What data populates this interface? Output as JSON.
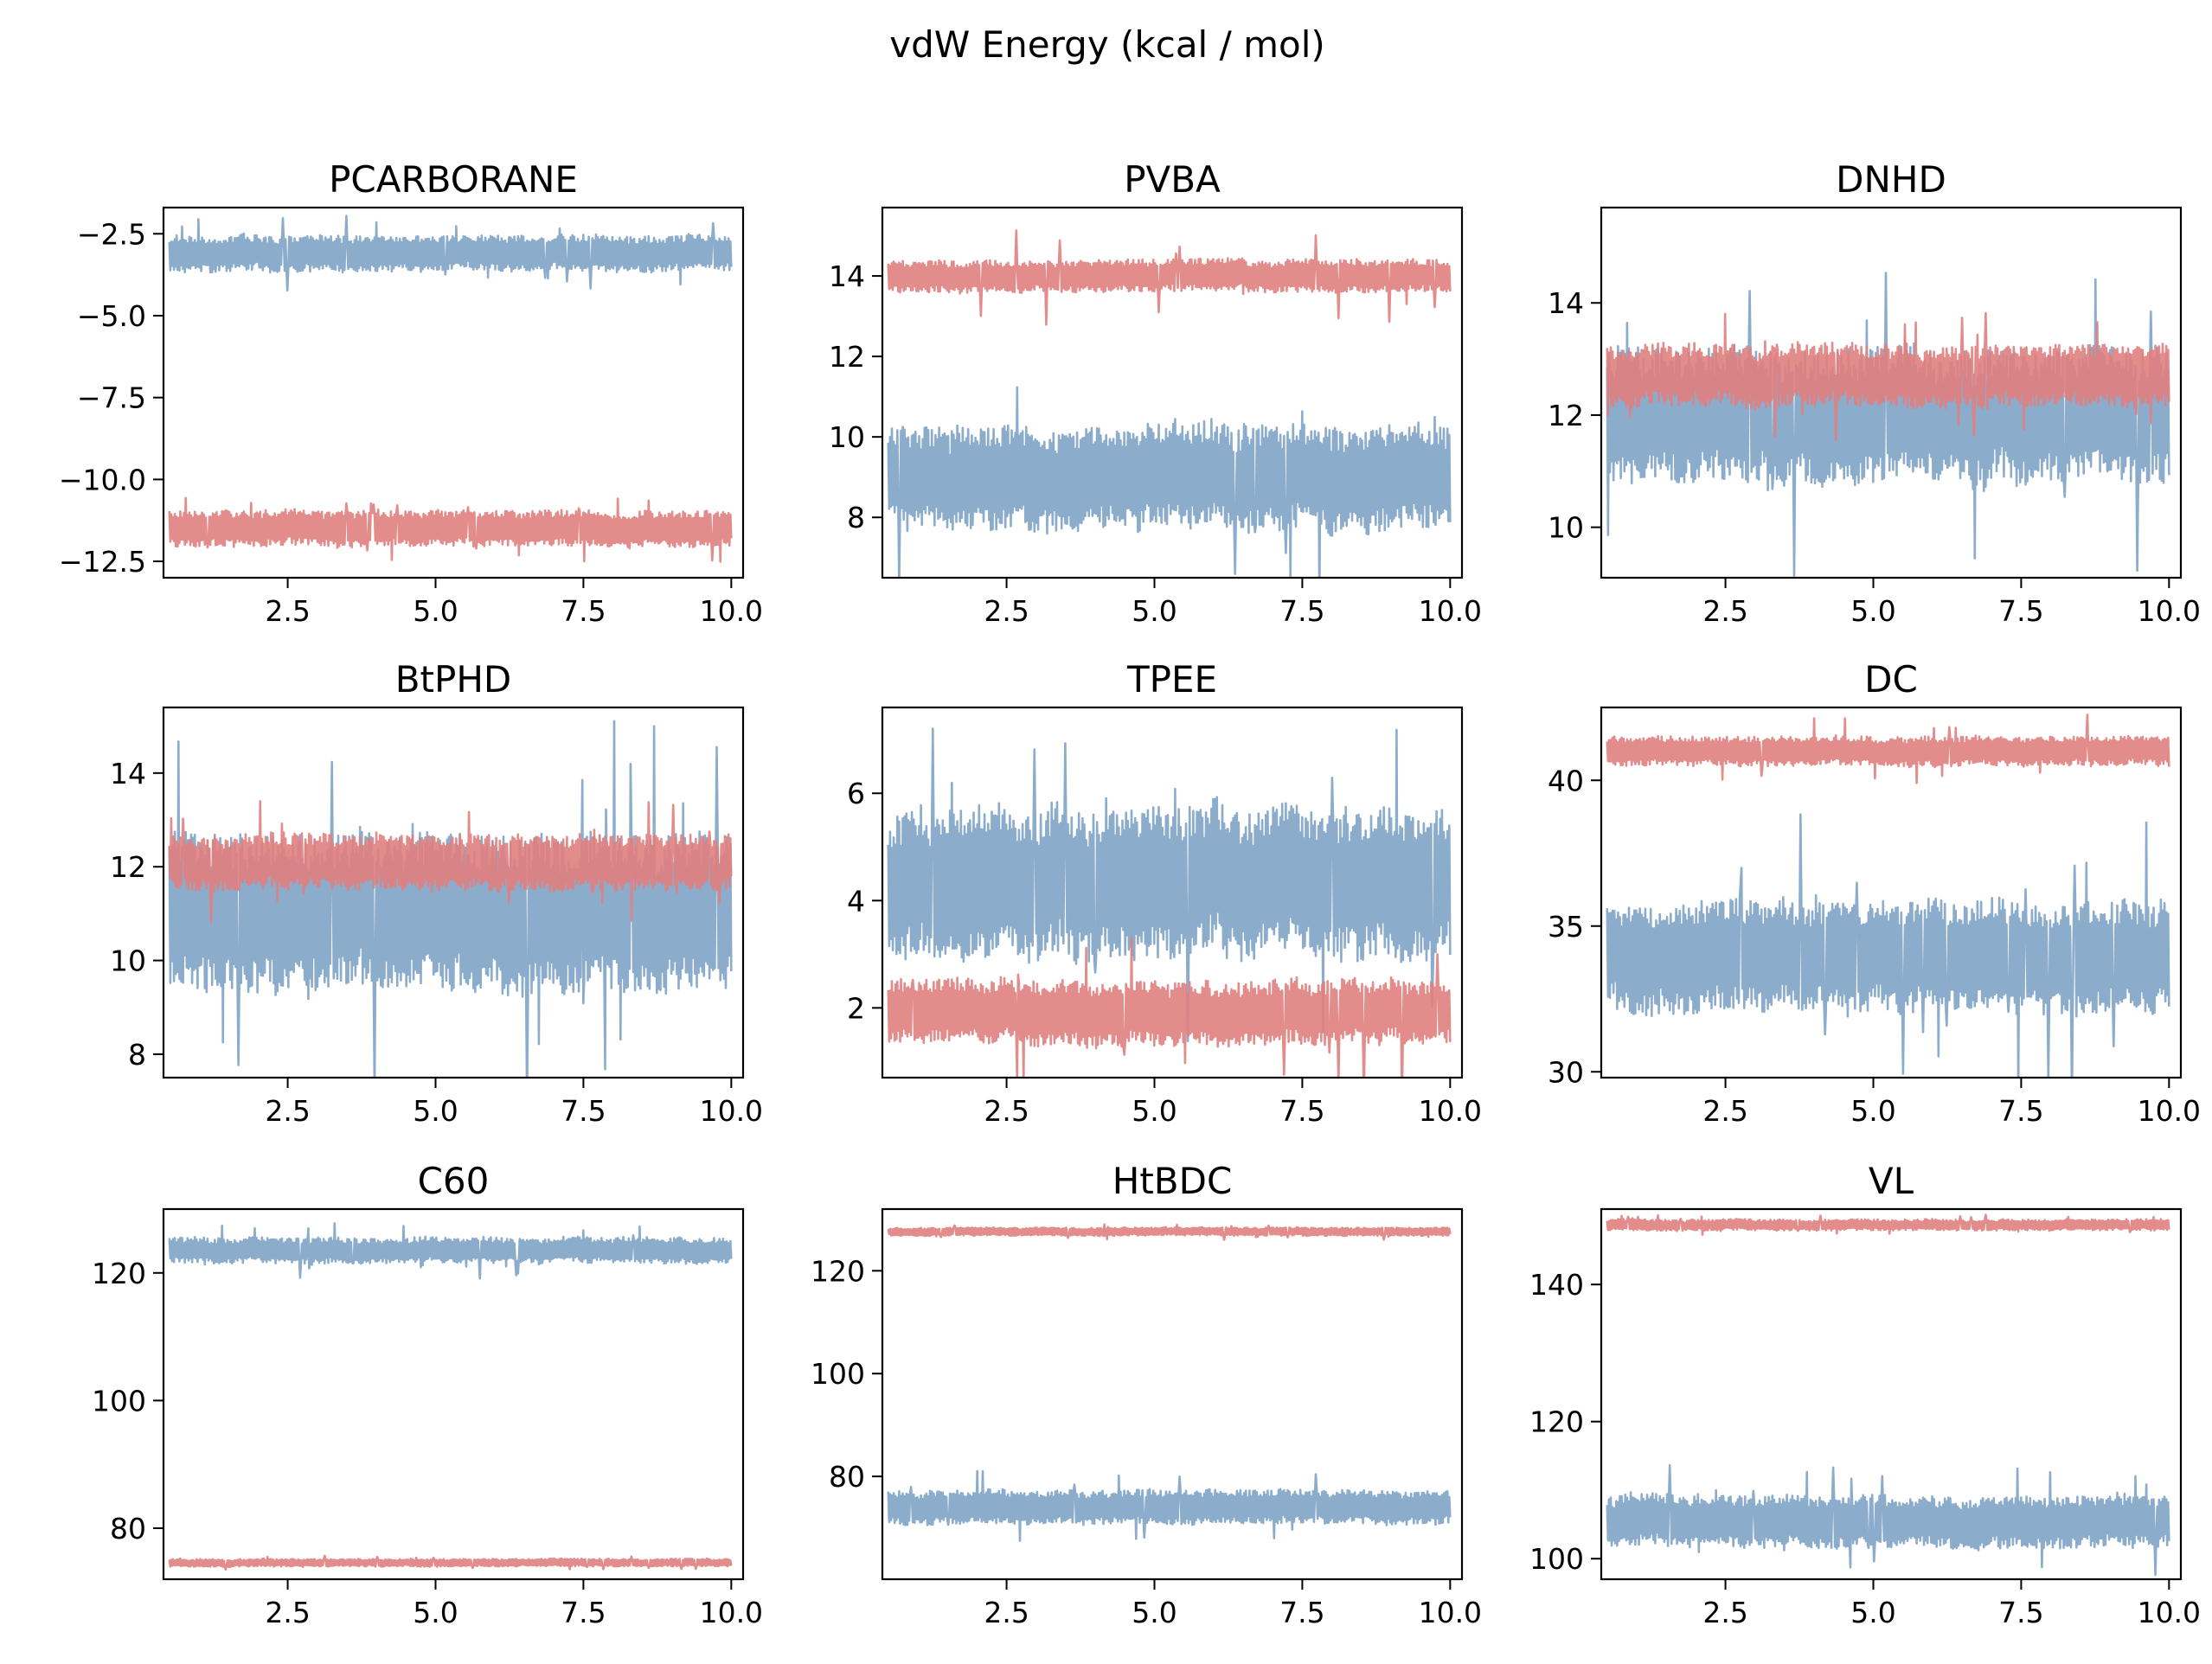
{
  "figure": {
    "title": "vdW Energy (kcal / mol)"
  },
  "colors": {
    "series_a": "#e07f80",
    "series_b": "#7fa3c6",
    "overlap": "#b46a72"
  },
  "chart_data": [
    {
      "type": "line",
      "title": "PCARBORANE",
      "xlim": [
        0.4,
        10.2
      ],
      "ylim": [
        -13.0,
        -1.7
      ],
      "xticks": [
        2.5,
        5.0,
        7.5,
        10.0
      ],
      "xtick_labels": [
        "2.5",
        "5.0",
        "7.5",
        "10.0"
      ],
      "yticks": [
        -12.5,
        -10.0,
        -7.5,
        -5.0,
        -2.5
      ],
      "ytick_labels": [
        "−12.5",
        "−10.0",
        "−7.5",
        "−5.0",
        "−2.5"
      ],
      "series": [
        {
          "color": "#e07f80",
          "x_range": [
            0.5,
            10.0
          ],
          "mean": -11.5,
          "band": 0.55,
          "spike": 0.5
        },
        {
          "color": "#7fa3c6",
          "x_range": [
            0.5,
            10.0
          ],
          "mean": -3.1,
          "band": 0.55,
          "spike": 0.6
        }
      ]
    },
    {
      "type": "line",
      "title": "PVBA",
      "xlim": [
        0.4,
        10.2
      ],
      "ylim": [
        6.5,
        15.7
      ],
      "xticks": [
        2.5,
        5.0,
        7.5,
        10.0
      ],
      "xtick_labels": [
        "2.5",
        "5.0",
        "7.5",
        "10.0"
      ],
      "yticks": [
        8,
        10,
        12,
        14
      ],
      "ytick_labels": [
        "8",
        "10",
        "12",
        "14"
      ],
      "series": [
        {
          "color": "#7fa3c6",
          "x_range": [
            0.5,
            10.0
          ],
          "mean": 9.0,
          "band": 1.3,
          "spike": 2.0
        },
        {
          "color": "#e07f80",
          "x_range": [
            0.5,
            10.0
          ],
          "mean": 14.0,
          "band": 0.4,
          "spike": 0.9
        }
      ]
    },
    {
      "type": "line",
      "title": "DNHD",
      "xlim": [
        0.4,
        10.2
      ],
      "ylim": [
        9.1,
        15.7
      ],
      "xticks": [
        2.5,
        5.0,
        7.5,
        10.0
      ],
      "xtick_labels": [
        "2.5",
        "5.0",
        "7.5",
        "10.0"
      ],
      "yticks": [
        10,
        12,
        14
      ],
      "ytick_labels": [
        "10",
        "12",
        "14"
      ],
      "series": [
        {
          "color": "#7fa3c6",
          "x_range": [
            0.5,
            10.0
          ],
          "mean": 12.0,
          "band": 1.2,
          "spike": 2.0
        },
        {
          "color": "#e07f80",
          "x_range": [
            0.5,
            10.0
          ],
          "mean": 12.7,
          "band": 0.55,
          "spike": 0.6
        }
      ]
    },
    {
      "type": "line",
      "title": "BtPHD",
      "xlim": [
        0.4,
        10.2
      ],
      "ylim": [
        7.5,
        15.4
      ],
      "xticks": [
        2.5,
        5.0,
        7.5,
        10.0
      ],
      "xtick_labels": [
        "2.5",
        "5.0",
        "7.5",
        "10.0"
      ],
      "yticks": [
        8,
        10,
        12,
        14
      ],
      "ytick_labels": [
        "8",
        "10",
        "12",
        "14"
      ],
      "series": [
        {
          "color": "#7fa3c6",
          "x_range": [
            0.5,
            10.0
          ],
          "mean": 11.0,
          "band": 1.7,
          "spike": 2.5
        },
        {
          "color": "#e07f80",
          "x_range": [
            0.5,
            10.0
          ],
          "mean": 12.1,
          "band": 0.6,
          "spike": 0.7
        }
      ]
    },
    {
      "type": "line",
      "title": "TPEE",
      "xlim": [
        0.4,
        10.2
      ],
      "ylim": [
        0.7,
        7.6
      ],
      "xticks": [
        2.5,
        5.0,
        7.5,
        10.0
      ],
      "xtick_labels": [
        "2.5",
        "5.0",
        "7.5",
        "10.0"
      ],
      "yticks": [
        2,
        4,
        6
      ],
      "ytick_labels": [
        "2",
        "4",
        "6"
      ],
      "series": [
        {
          "color": "#7fa3c6",
          "x_range": [
            0.5,
            10.0
          ],
          "mean": 4.3,
          "band": 1.4,
          "spike": 1.7
        },
        {
          "color": "#e07f80",
          "x_range": [
            0.5,
            10.0
          ],
          "mean": 1.9,
          "band": 0.6,
          "spike": 1.0
        }
      ]
    },
    {
      "type": "line",
      "title": "DC",
      "xlim": [
        0.4,
        10.2
      ],
      "ylim": [
        29.8,
        42.5
      ],
      "xticks": [
        2.5,
        5.0,
        7.5,
        10.0
      ],
      "xtick_labels": [
        "2.5",
        "5.0",
        "7.5",
        "10.0"
      ],
      "yticks": [
        30,
        35,
        40
      ],
      "ytick_labels": [
        "30",
        "35",
        "40"
      ],
      "series": [
        {
          "color": "#e07f80",
          "x_range": [
            0.5,
            10.0
          ],
          "mean": 41.0,
          "band": 0.5,
          "spike": 0.8
        },
        {
          "color": "#7fa3c6",
          "x_range": [
            0.5,
            10.0
          ],
          "mean": 34.0,
          "band": 1.9,
          "spike": 3.3
        }
      ]
    },
    {
      "type": "line",
      "title": "C60",
      "xlim": [
        0.4,
        10.2
      ],
      "ylim": [
        72.0,
        130.0
      ],
      "xticks": [
        2.5,
        5.0,
        7.5,
        10.0
      ],
      "xtick_labels": [
        "2.5",
        "5.0",
        "7.5",
        "10.0"
      ],
      "yticks": [
        80,
        100,
        120
      ],
      "ytick_labels": [
        "80",
        "100",
        "120"
      ],
      "series": [
        {
          "color": "#e07f80",
          "x_range": [
            0.5,
            10.0
          ],
          "mean": 74.6,
          "band": 0.6,
          "spike": 0.5
        },
        {
          "color": "#7fa3c6",
          "x_range": [
            0.5,
            10.0
          ],
          "mean": 123.5,
          "band": 2.0,
          "spike": 2.5
        }
      ]
    },
    {
      "type": "line",
      "title": "HtBDC",
      "xlim": [
        0.4,
        10.2
      ],
      "ylim": [
        60.0,
        132.0
      ],
      "xticks": [
        2.5,
        5.0,
        7.5,
        10.0
      ],
      "xtick_labels": [
        "2.5",
        "5.0",
        "7.5",
        "10.0"
      ],
      "yticks": [
        80,
        100,
        120
      ],
      "ytick_labels": [
        "80",
        "100",
        "120"
      ],
      "series": [
        {
          "color": "#7fa3c6",
          "x_range": [
            0.5,
            10.0
          ],
          "mean": 74.0,
          "band": 3.3,
          "spike": 4.0
        },
        {
          "color": "#e07f80",
          "x_range": [
            0.5,
            10.0
          ],
          "mean": 127.6,
          "band": 0.8,
          "spike": 0.8
        }
      ]
    },
    {
      "type": "line",
      "title": "VL",
      "xlim": [
        0.4,
        10.2
      ],
      "ylim": [
        97.0,
        151.0
      ],
      "xticks": [
        2.5,
        5.0,
        7.5,
        10.0
      ],
      "xtick_labels": [
        "2.5",
        "5.0",
        "7.5",
        "10.0"
      ],
      "yticks": [
        100,
        120,
        140
      ],
      "ytick_labels": [
        "100",
        "120",
        "140"
      ],
      "series": [
        {
          "color": "#7fa3c6",
          "x_range": [
            0.5,
            10.0
          ],
          "mean": 105.5,
          "band": 3.8,
          "spike": 4.5
        },
        {
          "color": "#e07f80",
          "x_range": [
            0.5,
            10.0
          ],
          "mean": 148.7,
          "band": 0.8,
          "spike": 0.7
        }
      ]
    }
  ]
}
